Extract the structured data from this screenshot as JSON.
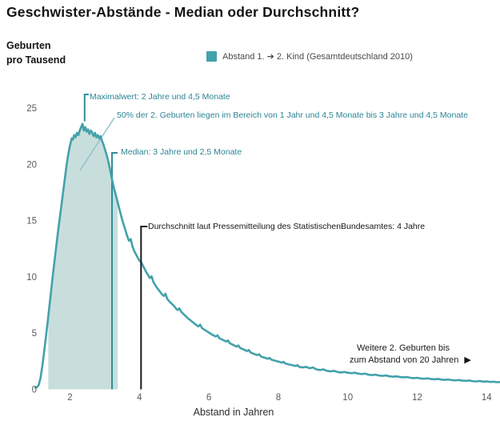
{
  "header": {
    "title": "Geschwister-Abstände - Median oder Durchschnitt?"
  },
  "axis": {
    "y_title_line1": "Geburten",
    "y_title_line2": "pro Tausend",
    "x_title": "Abstand in Jahren"
  },
  "legend": {
    "label": "Abstand 1. ➔ 2. Kind (Gesamtdeutschland 2010)",
    "swatch_color": "#43a1aa"
  },
  "annotations": {
    "max": {
      "label": "Maximalwert: 2 Jahre und 4,5 Monate"
    },
    "range50": {
      "label": "50% der 2. Geburten liegen im Bereich von 1 Jahr und 4,5 Monate bis 3 Jahre und 4,5 Monate"
    },
    "median": {
      "label": "Median: 3 Jahre und 2,5 Monate"
    },
    "average": {
      "label": "Durchschnitt laut Pressemitteilung des StatistischenBundesamtes: 4 Jahre"
    },
    "more": {
      "line1": "Weitere 2. Geburten bis",
      "line2": "zum Abstand von 20 Jahren",
      "arrow": "▶"
    }
  },
  "chart_data": {
    "type": "area",
    "title": "Geschwister-Abstände - Median oder Durchschnitt?",
    "xlabel": "Abstand in Jahren",
    "ylabel": "Geburten pro Tausend",
    "xlim": [
      0,
      14.4
    ],
    "ylim": [
      0,
      25
    ],
    "x_ticks": [
      2,
      4,
      6,
      8,
      10,
      12,
      14
    ],
    "y_ticks": [
      0,
      5,
      10,
      15,
      20,
      25
    ],
    "grid": false,
    "legend_position": "top",
    "colors": {
      "curve": "#43a1aa",
      "fill": "#c8dedd",
      "median_line": "#2f8d97",
      "pointer_line": "#8ec2c8",
      "average_line": "#1a1a1a",
      "teal_text": "#2c8494"
    },
    "max_year": 2.375,
    "max_value": 23.6,
    "median_year": 3.21,
    "average_year": 4,
    "shaded_region": {
      "from_year": 1.375,
      "to_year": 3.375,
      "share": "50%"
    },
    "series": [
      {
        "name": "Abstand 1. ➔ 2. Kind (Gesamtdeutschland 2010)",
        "color": "#43a1aa",
        "points": [
          [
            1.0,
            0.15
          ],
          [
            1.05,
            0.2
          ],
          [
            1.1,
            0.4
          ],
          [
            1.15,
            1.0
          ],
          [
            1.2,
            2.0
          ],
          [
            1.25,
            3.2
          ],
          [
            1.3,
            4.5
          ],
          [
            1.35,
            5.8
          ],
          [
            1.4,
            7.2
          ],
          [
            1.45,
            8.6
          ],
          [
            1.5,
            10.0
          ],
          [
            1.55,
            11.3
          ],
          [
            1.6,
            12.6
          ],
          [
            1.65,
            13.9
          ],
          [
            1.7,
            15.1
          ],
          [
            1.75,
            16.3
          ],
          [
            1.8,
            17.5
          ],
          [
            1.85,
            18.7
          ],
          [
            1.9,
            19.9
          ],
          [
            1.95,
            20.9
          ],
          [
            2.0,
            21.7
          ],
          [
            2.05,
            22.3
          ],
          [
            2.08,
            22.2
          ],
          [
            2.12,
            22.6
          ],
          [
            2.16,
            22.4
          ],
          [
            2.2,
            22.8
          ],
          [
            2.24,
            22.6
          ],
          [
            2.28,
            23.0
          ],
          [
            2.32,
            23.3
          ],
          [
            2.36,
            23.6
          ],
          [
            2.4,
            23.0
          ],
          [
            2.44,
            23.3
          ],
          [
            2.48,
            22.9
          ],
          [
            2.52,
            23.1
          ],
          [
            2.56,
            22.7
          ],
          [
            2.6,
            23.0
          ],
          [
            2.64,
            22.8
          ],
          [
            2.68,
            22.5
          ],
          [
            2.72,
            22.8
          ],
          [
            2.76,
            22.4
          ],
          [
            2.8,
            22.6
          ],
          [
            2.84,
            22.3
          ],
          [
            2.88,
            22.5
          ],
          [
            2.92,
            22.1
          ],
          [
            2.96,
            21.8
          ],
          [
            3.0,
            21.4
          ],
          [
            3.05,
            20.9
          ],
          [
            3.1,
            20.3
          ],
          [
            3.15,
            19.6
          ],
          [
            3.2,
            18.8
          ],
          [
            3.25,
            18.1
          ],
          [
            3.3,
            17.5
          ],
          [
            3.35,
            16.9
          ],
          [
            3.4,
            16.3
          ],
          [
            3.45,
            15.7
          ],
          [
            3.5,
            15.1
          ],
          [
            3.55,
            14.6
          ],
          [
            3.6,
            14.1
          ],
          [
            3.65,
            13.6
          ],
          [
            3.7,
            13.2
          ],
          [
            3.75,
            13.35
          ],
          [
            3.8,
            12.7
          ],
          [
            3.85,
            12.3
          ],
          [
            3.9,
            12.0
          ],
          [
            3.95,
            11.7
          ],
          [
            4.0,
            11.45
          ],
          [
            4.05,
            11.3
          ],
          [
            4.1,
            11.0
          ],
          [
            4.15,
            10.7
          ],
          [
            4.2,
            10.4
          ],
          [
            4.25,
            10.15
          ],
          [
            4.3,
            9.9
          ],
          [
            4.35,
            10.05
          ],
          [
            4.4,
            9.55
          ],
          [
            4.45,
            9.3
          ],
          [
            4.5,
            9.05
          ],
          [
            4.55,
            8.85
          ],
          [
            4.6,
            8.65
          ],
          [
            4.65,
            8.45
          ],
          [
            4.7,
            8.3
          ],
          [
            4.75,
            8.5
          ],
          [
            4.8,
            8.05
          ],
          [
            4.85,
            7.85
          ],
          [
            4.9,
            7.7
          ],
          [
            4.95,
            7.55
          ],
          [
            5.0,
            7.4
          ],
          [
            5.05,
            7.2
          ],
          [
            5.1,
            7.05
          ],
          [
            5.15,
            7.2
          ],
          [
            5.2,
            6.9
          ],
          [
            5.25,
            6.75
          ],
          [
            5.3,
            6.6
          ],
          [
            5.35,
            6.45
          ],
          [
            5.4,
            6.3
          ],
          [
            5.45,
            6.2
          ],
          [
            5.5,
            6.05
          ],
          [
            5.55,
            5.95
          ],
          [
            5.6,
            5.8
          ],
          [
            5.65,
            5.7
          ],
          [
            5.7,
            5.6
          ],
          [
            5.75,
            5.75
          ],
          [
            5.8,
            5.45
          ],
          [
            5.85,
            5.35
          ],
          [
            5.9,
            5.25
          ],
          [
            5.95,
            5.15
          ],
          [
            6.0,
            5.05
          ],
          [
            6.1,
            4.85
          ],
          [
            6.2,
            4.7
          ],
          [
            6.25,
            4.8
          ],
          [
            6.3,
            4.55
          ],
          [
            6.4,
            4.4
          ],
          [
            6.5,
            4.25
          ],
          [
            6.55,
            4.35
          ],
          [
            6.6,
            4.1
          ],
          [
            6.7,
            3.95
          ],
          [
            6.8,
            3.8
          ],
          [
            6.85,
            3.9
          ],
          [
            6.9,
            3.68
          ],
          [
            7.0,
            3.55
          ],
          [
            7.1,
            3.4
          ],
          [
            7.15,
            3.5
          ],
          [
            7.2,
            3.28
          ],
          [
            7.3,
            3.15
          ],
          [
            7.4,
            3.05
          ],
          [
            7.45,
            3.12
          ],
          [
            7.5,
            2.92
          ],
          [
            7.6,
            2.82
          ],
          [
            7.7,
            2.72
          ],
          [
            7.75,
            2.8
          ],
          [
            7.8,
            2.64
          ],
          [
            7.9,
            2.55
          ],
          [
            8.0,
            2.47
          ],
          [
            8.1,
            2.38
          ],
          [
            8.15,
            2.45
          ],
          [
            8.2,
            2.3
          ],
          [
            8.3,
            2.22
          ],
          [
            8.4,
            2.15
          ],
          [
            8.5,
            2.08
          ],
          [
            8.55,
            2.15
          ],
          [
            8.6,
            2.0
          ],
          [
            8.7,
            1.95
          ],
          [
            8.8,
            2.0
          ],
          [
            8.9,
            1.88
          ],
          [
            9.0,
            1.95
          ],
          [
            9.05,
            1.85
          ],
          [
            9.1,
            1.78
          ],
          [
            9.2,
            1.72
          ],
          [
            9.3,
            1.78
          ],
          [
            9.4,
            1.65
          ],
          [
            9.5,
            1.6
          ],
          [
            9.6,
            1.65
          ],
          [
            9.7,
            1.55
          ],
          [
            9.8,
            1.5
          ],
          [
            9.9,
            1.55
          ],
          [
            10.0,
            1.48
          ],
          [
            10.1,
            1.44
          ],
          [
            10.2,
            1.48
          ],
          [
            10.3,
            1.4
          ],
          [
            10.4,
            1.36
          ],
          [
            10.5,
            1.4
          ],
          [
            10.6,
            1.3
          ],
          [
            10.7,
            1.27
          ],
          [
            10.8,
            1.31
          ],
          [
            10.9,
            1.23
          ],
          [
            11.0,
            1.2
          ],
          [
            11.1,
            1.24
          ],
          [
            11.2,
            1.16
          ],
          [
            11.3,
            1.13
          ],
          [
            11.4,
            1.16
          ],
          [
            11.5,
            1.1
          ],
          [
            11.6,
            1.07
          ],
          [
            11.7,
            1.1
          ],
          [
            11.8,
            1.03
          ],
          [
            11.9,
            1.0
          ],
          [
            12.0,
            1.03
          ],
          [
            12.1,
            0.97
          ],
          [
            12.2,
            0.95
          ],
          [
            12.3,
            0.98
          ],
          [
            12.4,
            0.92
          ],
          [
            12.5,
            0.9
          ],
          [
            12.6,
            0.93
          ],
          [
            12.7,
            0.87
          ],
          [
            12.8,
            0.85
          ],
          [
            12.9,
            0.88
          ],
          [
            13.0,
            0.82
          ],
          [
            13.1,
            0.8
          ],
          [
            13.2,
            0.83
          ],
          [
            13.3,
            0.78
          ],
          [
            13.4,
            0.76
          ],
          [
            13.5,
            0.79
          ],
          [
            13.6,
            0.73
          ],
          [
            13.7,
            0.71
          ],
          [
            13.8,
            0.74
          ],
          [
            13.9,
            0.69
          ],
          [
            14.0,
            0.71
          ],
          [
            14.1,
            0.66
          ],
          [
            14.2,
            0.68
          ],
          [
            14.3,
            0.64
          ],
          [
            14.38,
            0.65
          ]
        ]
      }
    ]
  }
}
